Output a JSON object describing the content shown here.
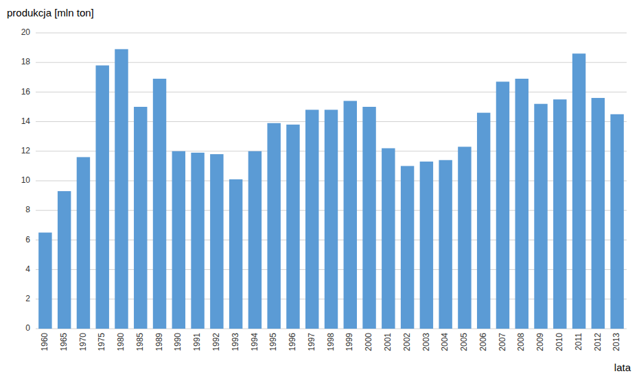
{
  "chart_data": {
    "type": "bar",
    "y_label": "produkcja [mln ton]",
    "x_label": "lata",
    "categories": [
      "1960",
      "1965",
      "1970",
      "1975",
      "1980",
      "1985",
      "1989",
      "1990",
      "1991",
      "1992",
      "1993",
      "1994",
      "1995",
      "1996",
      "1997",
      "1998",
      "1999",
      "2000",
      "2001",
      "2002",
      "2003",
      "2004",
      "2005",
      "2006",
      "2007",
      "2008",
      "2009",
      "2010",
      "2011",
      "2012",
      "2013"
    ],
    "values": [
      6.5,
      9.3,
      11.6,
      17.8,
      18.9,
      15.0,
      16.9,
      12.0,
      11.9,
      11.8,
      10.1,
      12.0,
      13.9,
      13.8,
      14.8,
      14.8,
      15.4,
      15.0,
      12.2,
      11.0,
      11.3,
      11.4,
      12.3,
      14.6,
      16.7,
      16.9,
      15.2,
      15.5,
      18.6,
      15.6,
      14.5
    ],
    "color": "#5B9BD5",
    "ylim": [
      0,
      20
    ],
    "yticks": [
      0,
      2,
      4,
      6,
      8,
      10,
      12,
      14,
      16,
      18,
      20
    ],
    "grid": true
  }
}
